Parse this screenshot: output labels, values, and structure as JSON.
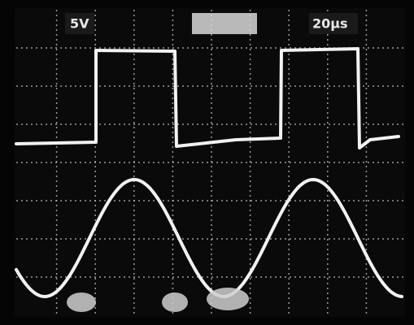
{
  "labels": {
    "top_left": "5V",
    "top_right": "20µs"
  }
}
